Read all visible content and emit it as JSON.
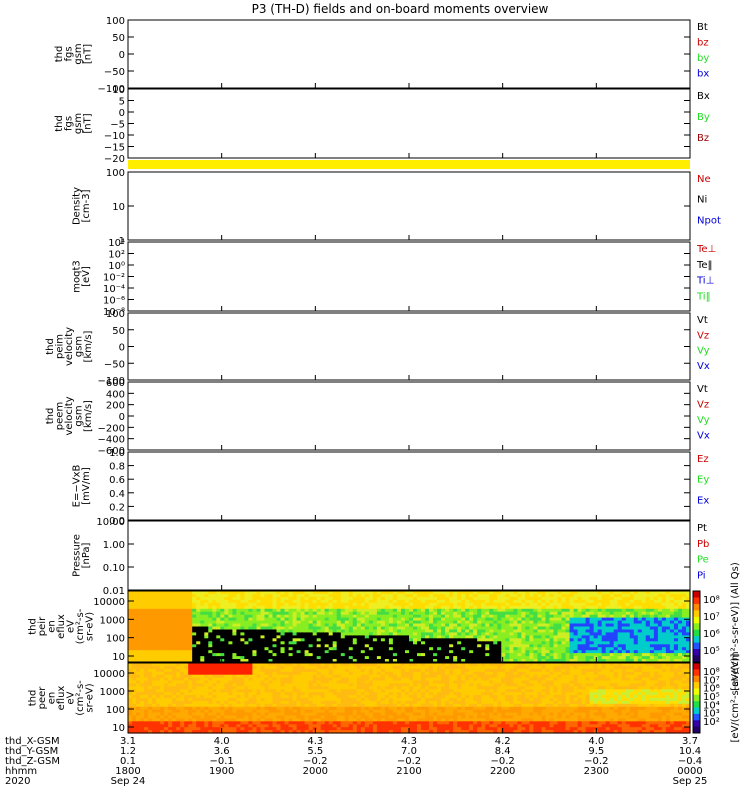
{
  "title": "P3 (TH-D) fields and on-board moments overview",
  "colors": {
    "black": "#000000",
    "red": "#cc0000",
    "green": "#22dd22",
    "blue": "#0000dd",
    "dark_red": "#990000",
    "yellow": "#ffee00"
  },
  "chart_data": [
    {
      "type": "line",
      "ylabel": [
        "thd",
        "fgs",
        "gsm",
        "[nT]"
      ],
      "ylim": [
        -100,
        100
      ],
      "ticks": [
        "100",
        "50",
        "0",
        "−50",
        "−100"
      ],
      "series": [
        {
          "name": "Bt",
          "color": "black"
        },
        {
          "name": "bz",
          "color": "red"
        },
        {
          "name": "by",
          "color": "green"
        },
        {
          "name": "bx",
          "color": "blue"
        }
      ]
    },
    {
      "type": "line",
      "ylabel": [
        "thd",
        "fgs",
        "gsm",
        "[nT]"
      ],
      "ylim": [
        -20,
        10
      ],
      "ticks": [
        "10",
        "5",
        "0",
        "−5",
        "−10",
        "−15",
        "−20"
      ],
      "series": [
        {
          "name": "Bx",
          "color": "black"
        },
        {
          "name": "By",
          "color": "green"
        },
        {
          "name": "Bz",
          "color": "dark_red"
        }
      ]
    },
    {
      "type": "line",
      "ylabel": [
        "Density",
        "[cm-3]"
      ],
      "log": true,
      "ticks": [
        "100",
        "10",
        "1"
      ],
      "series": [
        {
          "name": "Ne",
          "color": "red"
        },
        {
          "name": "Ni",
          "color": "black"
        },
        {
          "name": "Npot",
          "color": "blue"
        }
      ]
    },
    {
      "type": "line",
      "ylabel": [
        "moqt3",
        "[eV]"
      ],
      "log": true,
      "ticks": [
        "10⁴",
        "10²",
        "10⁰",
        "10⁻²",
        "10⁻⁴",
        "10⁻⁶",
        "10⁻⁸"
      ],
      "series": [
        {
          "name": "Te⊥",
          "color": "red"
        },
        {
          "name": "Te‖",
          "color": "black"
        },
        {
          "name": "Ti⊥",
          "color": "blue"
        },
        {
          "name": "Ti‖",
          "color": "green"
        }
      ]
    },
    {
      "type": "line",
      "ylabel": [
        "thd",
        "peim",
        "velocity",
        "gsm",
        "[km/s]"
      ],
      "ylim": [
        -100,
        100
      ],
      "ticks": [
        "100",
        "50",
        "0",
        "−50",
        "−100"
      ],
      "series": [
        {
          "name": "Vt",
          "color": "black"
        },
        {
          "name": "Vz",
          "color": "red"
        },
        {
          "name": "Vy",
          "color": "green"
        },
        {
          "name": "Vx",
          "color": "blue"
        }
      ]
    },
    {
      "type": "line",
      "ylabel": [
        "thd",
        "peem",
        "velocity",
        "gsm",
        "[km/s]"
      ],
      "ylim": [
        -600,
        600
      ],
      "ticks": [
        "600",
        "400",
        "200",
        "0",
        "−200",
        "−400",
        "−600"
      ],
      "series": [
        {
          "name": "Vt",
          "color": "black"
        },
        {
          "name": "Vz",
          "color": "red"
        },
        {
          "name": "Vy",
          "color": "green"
        },
        {
          "name": "Vx",
          "color": "blue"
        }
      ]
    },
    {
      "type": "line",
      "ylabel": [
        "E=−VxB",
        "[mV/m]"
      ],
      "ylim": [
        0,
        1
      ],
      "ticks": [
        "1.0",
        "0.8",
        "0.6",
        "0.4",
        "0.2",
        "0.0"
      ],
      "series": [
        {
          "name": "Ez",
          "color": "red"
        },
        {
          "name": "Ey",
          "color": "green"
        },
        {
          "name": "Ex",
          "color": "blue"
        }
      ]
    },
    {
      "type": "line",
      "ylabel": [
        "Pressure",
        "[nPa]"
      ],
      "log": true,
      "ticks": [
        "10.00",
        "1.00",
        "0.10",
        "0.01"
      ],
      "series": [
        {
          "name": "Pt",
          "color": "black"
        },
        {
          "name": "Pb",
          "color": "red"
        },
        {
          "name": "Pe",
          "color": "green"
        },
        {
          "name": "Pi",
          "color": "blue"
        }
      ]
    },
    {
      "type": "heatmap",
      "ylabel": [
        "thd",
        "peir",
        "en",
        "eflux",
        "eV",
        "(cm²-s-",
        "sr-eV)"
      ],
      "ticks": [
        "10000",
        "1000",
        "100",
        "10"
      ],
      "colorbar": {
        "label": "[eV/(cm²-s-sr-eV)] (All Qs)",
        "ticks": [
          "10⁸",
          "10⁷",
          "10⁶",
          "10⁵"
        ]
      }
    },
    {
      "type": "heatmap",
      "ylabel": [
        "thd",
        "peer",
        "en",
        "eflux",
        "eV",
        "(cm²-s-",
        "sr-eV)"
      ],
      "ticks": [
        "10000",
        "1000",
        "100",
        "10"
      ],
      "colorbar": {
        "label": "[eV/(cm²-s-sr-eV)]",
        "ticks": [
          "10⁸",
          "10⁷",
          "10⁶",
          "10⁵",
          "10⁴",
          "10³",
          "10²"
        ]
      }
    }
  ],
  "xaxis": {
    "row_labels": [
      "thd_X-GSM",
      "thd_Y-GSM",
      "thd_Z-GSM",
      "hhmm",
      "2020"
    ],
    "columns": [
      {
        "vals": [
          "3.1",
          "1.2",
          "0.1",
          "1800",
          "Sep 24"
        ]
      },
      {
        "vals": [
          "4.0",
          "3.6",
          "−0.1",
          "1900",
          ""
        ]
      },
      {
        "vals": [
          "4.3",
          "5.5",
          "−0.2",
          "2000",
          ""
        ]
      },
      {
        "vals": [
          "4.3",
          "7.0",
          "−0.2",
          "2100",
          ""
        ]
      },
      {
        "vals": [
          "4.2",
          "8.4",
          "−0.2",
          "2200",
          ""
        ]
      },
      {
        "vals": [
          "4.0",
          "9.5",
          "−0.2",
          "2300",
          ""
        ]
      },
      {
        "vals": [
          "3.7",
          "10.4",
          "−0.4",
          "0000",
          "Sep 25"
        ]
      }
    ]
  }
}
